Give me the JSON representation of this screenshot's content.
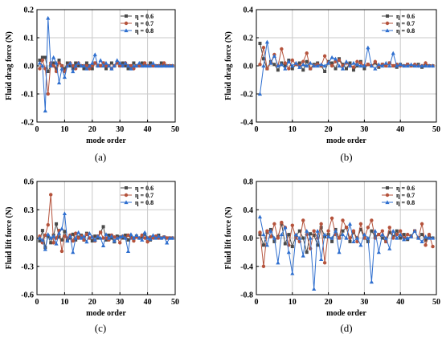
{
  "legend_labels": [
    "η = 0.6",
    "η = 0.7",
    "η = 0.8"
  ],
  "colors": {
    "series_0.6": "#4a4a4a",
    "series_0.7": "#b5533c",
    "series_0.8": "#2f6fcf",
    "grid": "#c9c9c9",
    "axis": "#000000"
  },
  "markers": {
    "series_0.6": "square",
    "series_0.7": "circle",
    "series_0.8": "triangle"
  },
  "chart_data": [
    {
      "type": "line",
      "panel_label": "(a)",
      "xlabel": "mode order",
      "ylabel": "Fluid drag force (N)",
      "xlim": [
        0,
        50
      ],
      "ylim": [
        -0.2,
        0.2
      ],
      "xticks": [
        0,
        10,
        20,
        30,
        40,
        50
      ],
      "yticks": [
        -0.2,
        -0.1,
        0.0,
        0.1,
        0.2
      ],
      "ytick_labels": [
        "-0.2",
        "-0.1",
        "0.0",
        "0.1",
        "0.2"
      ],
      "grid": true,
      "legend_position": "top-right",
      "x": [
        1,
        2,
        3,
        4,
        5,
        6,
        7,
        8,
        9,
        10,
        11,
        12,
        13,
        14,
        15,
        16,
        17,
        18,
        19,
        20,
        21,
        22,
        23,
        24,
        25,
        26,
        27,
        28,
        29,
        30,
        31,
        32,
        33,
        34,
        35,
        36,
        37,
        38,
        39,
        40,
        41,
        42,
        43,
        44,
        45,
        46,
        47,
        48,
        49
      ],
      "series": [
        {
          "name": "η = 0.6",
          "values": [
            0.02,
            0.03,
            0.03,
            -0.02,
            0.0,
            0.01,
            -0.01,
            0.02,
            0.0,
            -0.01,
            0.01,
            0.0,
            -0.01,
            0.01,
            0.0,
            0.0,
            -0.01,
            0.01,
            0.0,
            -0.01,
            0.01,
            0.0,
            0.0,
            0.01,
            -0.01,
            0.0,
            0.01,
            0.0,
            0.01,
            0.0,
            0.01,
            0.0,
            -0.01,
            0.0,
            0.01,
            0.0,
            0.0,
            0.01,
            0.0,
            0.0,
            0.01,
            0.0,
            0.0,
            0.0,
            0.01,
            0.0,
            0.0,
            0.0,
            0.0
          ]
        },
        {
          "name": "η = 0.7",
          "values": [
            -0.01,
            0.02,
            -0.01,
            -0.1,
            0.01,
            0.0,
            -0.02,
            0.01,
            0.0,
            -0.02,
            0.0,
            0.01,
            0.0,
            -0.01,
            0.01,
            0.0,
            0.0,
            0.0,
            -0.01,
            0.0,
            0.01,
            0.0,
            0.0,
            0.01,
            0.0,
            0.0,
            -0.01,
            0.0,
            0.01,
            0.0,
            0.0,
            0.01,
            0.0,
            0.0,
            -0.01,
            0.0,
            0.0,
            0.0,
            0.01,
            0.0,
            0.0,
            0.0,
            0.0,
            0.0,
            0.0,
            0.01,
            0.0,
            0.0,
            0.0
          ]
        },
        {
          "name": "η = 0.8",
          "values": [
            0.01,
            0.0,
            -0.16,
            0.17,
            0.0,
            0.03,
            0.01,
            -0.06,
            -0.01,
            -0.04,
            0.0,
            0.01,
            -0.02,
            0.0,
            0.01,
            0.0,
            0.0,
            -0.01,
            0.0,
            0.01,
            0.04,
            0.0,
            0.02,
            0.0,
            0.01,
            0.0,
            -0.01,
            0.0,
            0.02,
            0.01,
            0.0,
            0.01,
            0.0,
            -0.01,
            0.0,
            0.0,
            0.01,
            0.0,
            0.0,
            0.0,
            0.0,
            0.01,
            0.0,
            0.0,
            0.0,
            0.0,
            0.0,
            0.0,
            0.0
          ]
        }
      ]
    },
    {
      "type": "line",
      "panel_label": "(b)",
      "xlabel": "mode order",
      "ylabel": "Fluid drag force (N)",
      "xlim": [
        0,
        50
      ],
      "ylim": [
        -0.4,
        0.4
      ],
      "xticks": [
        0,
        10,
        20,
        30,
        40,
        50
      ],
      "yticks": [
        -0.4,
        -0.2,
        0.0,
        0.2,
        0.4
      ],
      "ytick_labels": [
        "-0.4",
        "-0.2",
        "0.0",
        "0.2",
        "0.4"
      ],
      "grid": true,
      "legend_position": "top-right",
      "x": [
        1,
        2,
        3,
        4,
        5,
        6,
        7,
        8,
        9,
        10,
        11,
        12,
        13,
        14,
        15,
        16,
        17,
        18,
        19,
        20,
        21,
        22,
        23,
        24,
        25,
        26,
        27,
        28,
        29,
        30,
        31,
        32,
        33,
        34,
        35,
        36,
        37,
        38,
        39,
        40,
        41,
        42,
        43,
        44,
        45,
        46,
        47,
        48,
        49
      ],
      "series": [
        {
          "name": "η = 0.6",
          "values": [
            0.16,
            0.05,
            -0.02,
            0.03,
            0.01,
            -0.03,
            0.02,
            0.0,
            0.04,
            -0.02,
            0.01,
            0.02,
            -0.03,
            0.03,
            -0.02,
            0.01,
            0.02,
            0.0,
            -0.04,
            0.03,
            0.02,
            -0.02,
            0.05,
            0.01,
            -0.02,
            0.02,
            -0.03,
            0.0,
            0.03,
            -0.02,
            0.01,
            0.0,
            0.02,
            -0.01,
            0.01,
            0.0,
            0.02,
            0.0,
            -0.01,
            0.01,
            0.0,
            0.01,
            0.0,
            0.0,
            0.01,
            -0.01,
            0.0,
            0.0,
            0.0
          ]
        },
        {
          "name": "η = 0.7",
          "values": [
            0.01,
            0.13,
            -0.02,
            0.02,
            0.08,
            0.0,
            0.12,
            0.02,
            -0.02,
            0.04,
            0.01,
            0.0,
            0.03,
            0.09,
            -0.02,
            0.0,
            0.01,
            0.0,
            0.07,
            0.02,
            0.0,
            0.03,
            0.04,
            0.0,
            0.02,
            0.0,
            -0.01,
            0.03,
            0.02,
            0.0,
            0.01,
            0.0,
            0.03,
            0.0,
            0.01,
            0.0,
            0.02,
            0.0,
            0.01,
            0.0,
            0.0,
            0.01,
            0.0,
            0.01,
            0.0,
            0.0,
            0.02,
            0.0,
            0.0
          ]
        },
        {
          "name": "η = 0.8",
          "values": [
            -0.2,
            0.0,
            0.17,
            0.02,
            0.07,
            0.0,
            0.01,
            -0.02,
            0.03,
            0.0,
            0.02,
            -0.01,
            0.01,
            0.0,
            0.02,
            0.0,
            0.0,
            0.01,
            0.0,
            0.02,
            0.06,
            0.05,
            0.0,
            -0.02,
            0.03,
            0.0,
            0.02,
            0.01,
            0.0,
            0.0,
            0.13,
            0.0,
            -0.02,
            0.01,
            0.0,
            0.02,
            0.0,
            0.09,
            0.0,
            0.01,
            0.0,
            0.0,
            0.01,
            0.0,
            0.0,
            0.0,
            0.0,
            0.0,
            0.0
          ]
        }
      ]
    },
    {
      "type": "line",
      "panel_label": "(c)",
      "xlabel": "mode order",
      "ylabel": "Fluid  lift  force (N)",
      "xlim": [
        0,
        50
      ],
      "ylim": [
        -0.6,
        0.6
      ],
      "xticks": [
        0,
        10,
        20,
        30,
        40,
        50
      ],
      "yticks": [
        -0.6,
        -0.3,
        0.0,
        0.3,
        0.6
      ],
      "ytick_labels": [
        "-0.6",
        "-0.3",
        "0.0",
        "0.3",
        "0.6"
      ],
      "grid": true,
      "legend_position": "top-right",
      "x": [
        1,
        2,
        3,
        4,
        5,
        6,
        7,
        8,
        9,
        10,
        11,
        12,
        13,
        14,
        15,
        16,
        17,
        18,
        19,
        20,
        21,
        22,
        23,
        24,
        25,
        26,
        27,
        28,
        29,
        30,
        31,
        32,
        33,
        34,
        35,
        36,
        37,
        38,
        39,
        40,
        41,
        42,
        43,
        44,
        45,
        46,
        47,
        48,
        49
      ],
      "series": [
        {
          "name": "η = 0.6",
          "values": [
            -0.03,
            0.08,
            -0.1,
            0.02,
            -0.05,
            0.03,
            0.15,
            0.01,
            -0.02,
            0.07,
            -0.03,
            0.0,
            0.04,
            -0.02,
            0.01,
            0.03,
            -0.02,
            0.05,
            0.0,
            -0.03,
            0.02,
            0.0,
            0.06,
            0.12,
            -0.02,
            0.03,
            0.0,
            -0.04,
            0.02,
            0.01,
            0.0,
            0.03,
            -0.02,
            0.01,
            0.0,
            0.02,
            0.0,
            0.01,
            0.04,
            0.0,
            -0.02,
            0.01,
            0.0,
            0.03,
            0.0,
            0.01,
            0.0,
            0.0,
            0.0
          ]
        },
        {
          "name": "η = 0.7",
          "values": [
            0.02,
            -0.05,
            0.03,
            0.14,
            0.46,
            -0.05,
            0.0,
            0.08,
            -0.14,
            0.02,
            0.0,
            0.03,
            -0.03,
            0.05,
            0.0,
            0.02,
            -0.02,
            0.04,
            0.0,
            0.01,
            -0.03,
            0.02,
            0.06,
            0.0,
            0.0,
            -0.02,
            0.03,
            0.01,
            0.0,
            -0.05,
            0.02,
            0.0,
            0.03,
            0.0,
            -0.03,
            0.01,
            0.0,
            0.03,
            0.0,
            -0.04,
            0.01,
            0.0,
            0.02,
            0.0,
            0.0,
            0.01,
            0.0,
            0.0,
            0.0
          ]
        },
        {
          "name": "η = 0.8",
          "values": [
            0.0,
            -0.02,
            -0.12,
            0.04,
            0.0,
            0.02,
            -0.06,
            0.05,
            0.1,
            0.26,
            -0.03,
            0.02,
            -0.15,
            0.0,
            0.06,
            0.0,
            0.02,
            -0.04,
            0.05,
            0.01,
            -0.02,
            0.02,
            0.0,
            -0.08,
            0.04,
            0.0,
            0.02,
            -0.03,
            0.0,
            0.01,
            0.02,
            0.0,
            -0.14,
            0.04,
            0.0,
            0.03,
            0.0,
            -0.02,
            0.06,
            0.0,
            -0.01,
            0.03,
            0.0,
            0.02,
            0.0,
            0.01,
            -0.05,
            0.0,
            0.0
          ]
        }
      ]
    },
    {
      "type": "line",
      "panel_label": "(d)",
      "xlabel": "mode order",
      "ylabel": "Fluid  lift  force (N)",
      "xlim": [
        0,
        50
      ],
      "ylim": [
        -0.8,
        0.8
      ],
      "xticks": [
        0,
        10,
        20,
        30,
        40,
        50
      ],
      "yticks": [
        -0.8,
        -0.4,
        0.0,
        0.4,
        0.8
      ],
      "ytick_labels": [
        "-0.8",
        "-0.4",
        "0.0",
        "0.4",
        "0.8"
      ],
      "grid": true,
      "legend_position": "top-right",
      "x": [
        1,
        2,
        3,
        4,
        5,
        6,
        7,
        8,
        9,
        10,
        11,
        12,
        13,
        14,
        15,
        16,
        17,
        18,
        19,
        20,
        21,
        22,
        23,
        24,
        25,
        26,
        27,
        28,
        29,
        30,
        31,
        32,
        33,
        34,
        35,
        36,
        37,
        38,
        39,
        40,
        41,
        42,
        43,
        44,
        45,
        46,
        47,
        48,
        49
      ],
      "series": [
        {
          "name": "η = 0.6",
          "values": [
            0.05,
            -0.1,
            0.08,
            0.12,
            -0.05,
            0.02,
            0.2,
            -0.08,
            0.05,
            -0.12,
            0.03,
            0.1,
            0.0,
            -0.2,
            0.06,
            0.04,
            -0.1,
            0.15,
            0.02,
            0.05,
            -0.05,
            0.12,
            0.0,
            0.1,
            0.15,
            -0.05,
            0.08,
            0.0,
            0.12,
            0.0,
            -0.05,
            0.1,
            0.02,
            0.05,
            0.0,
            -0.05,
            0.08,
            0.02,
            0.1,
            0.0,
            0.05,
            -0.02,
            0.03,
            0.1,
            0.0,
            0.05,
            -0.03,
            0.02,
            0.0
          ]
        },
        {
          "name": "η = 0.7",
          "values": [
            0.08,
            -0.4,
            0.1,
            0.02,
            0.2,
            0.0,
            0.22,
            0.15,
            -0.1,
            0.18,
            0.0,
            -0.05,
            0.25,
            0.05,
            -0.15,
            0.1,
            0.0,
            0.2,
            -0.35,
            0.1,
            0.28,
            0.05,
            0.0,
            0.25,
            0.15,
            0.0,
            0.1,
            -0.05,
            0.2,
            0.0,
            0.15,
            0.25,
            0.0,
            0.05,
            0.1,
            -0.05,
            0.15,
            0.0,
            0.05,
            0.1,
            0.0,
            0.05,
            0.02,
            0.1,
            0.0,
            0.2,
            -0.1,
            0.05,
            -0.12
          ]
        },
        {
          "name": "η = 0.8",
          "values": [
            0.3,
            0.05,
            -0.1,
            0.1,
            0.0,
            -0.35,
            0.05,
            0.15,
            -0.2,
            -0.5,
            0.05,
            0.0,
            -0.25,
            0.1,
            0.0,
            -0.72,
            0.1,
            -0.3,
            0.05,
            0.02,
            0.0,
            0.1,
            -0.2,
            0.05,
            0.0,
            0.2,
            -0.05,
            0.0,
            -0.1,
            0.05,
            0.0,
            -0.62,
            0.1,
            -0.2,
            0.05,
            0.0,
            -0.15,
            0.1,
            0.0,
            0.05,
            -0.02,
            0.0,
            0.02,
            0.1,
            0.0,
            -0.05,
            0.02,
            0.0,
            0.0
          ]
        }
      ]
    }
  ]
}
